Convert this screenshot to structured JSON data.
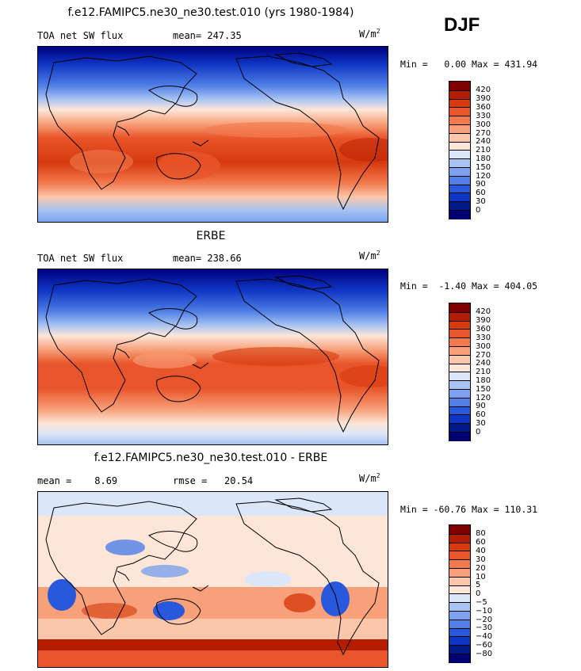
{
  "season": "DJF",
  "panels": [
    {
      "title": "f.e12.FAMIPC5.ne30_ne30.test.010 (yrs 1980-1984)",
      "left": "TOA net SW flux",
      "mid": "mean= 247.35",
      "units_base": "W/m",
      "units_exp": "2",
      "minmax": "Min =   0.00 Max = 431.94",
      "labels": [
        "420",
        "390",
        "360",
        "330",
        "300",
        "270",
        "240",
        "210",
        "180",
        "150",
        "120",
        "90",
        "60",
        "30",
        "0"
      ],
      "colors": [
        "#7f0000",
        "#b51d00",
        "#d63a0e",
        "#e9552a",
        "#f27a4e",
        "#f7a07a",
        "#fac7ab",
        "#fde6d8",
        "#dbe6f8",
        "#a9c4f2",
        "#7aa2ee",
        "#4e7ee6",
        "#2858dc",
        "#0e36c4",
        "#001a8c",
        "#000073"
      ]
    },
    {
      "title": "ERBE",
      "left": "TOA net SW flux",
      "mid": "mean= 238.66",
      "units_base": "W/m",
      "units_exp": "2",
      "minmax": "Min =  -1.40 Max = 404.05",
      "labels": [
        "420",
        "390",
        "360",
        "330",
        "300",
        "270",
        "240",
        "210",
        "180",
        "150",
        "120",
        "90",
        "60",
        "30",
        "0"
      ],
      "colors": [
        "#7f0000",
        "#b51d00",
        "#d63a0e",
        "#e9552a",
        "#f27a4e",
        "#f7a07a",
        "#fac7ab",
        "#fde6d8",
        "#dbe6f8",
        "#a9c4f2",
        "#7aa2ee",
        "#4e7ee6",
        "#2858dc",
        "#0e36c4",
        "#001a8c",
        "#000073"
      ]
    },
    {
      "title": "f.e12.FAMIPC5.ne30_ne30.test.010 - ERBE",
      "left": "mean =    8.69",
      "mid": "rmse =   20.54",
      "units_base": "W/m",
      "units_exp": "2",
      "minmax": "Min = -60.76 Max = 110.31",
      "labels": [
        "80",
        "60",
        "40",
        "30",
        "20",
        "10",
        "5",
        "0",
        "−5",
        "−10",
        "−20",
        "−30",
        "−40",
        "−60",
        "−80"
      ],
      "colors": [
        "#7f0000",
        "#b51d00",
        "#d63a0e",
        "#e9552a",
        "#f27a4e",
        "#f7a07a",
        "#fac7ab",
        "#fde6d8",
        "#dbe6f8",
        "#a9c4f2",
        "#7aa2ee",
        "#4e7ee6",
        "#2858dc",
        "#0e36c4",
        "#001a8c",
        "#000073"
      ]
    }
  ]
}
